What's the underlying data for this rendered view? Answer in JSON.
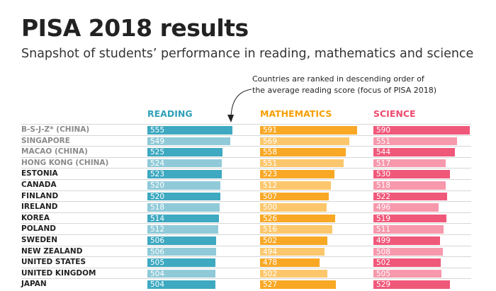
{
  "chart_data": {
    "type": "bar",
    "title": "PISA 2018 results",
    "subtitle": "Snapshot of students’ performance in reading, mathematics and science",
    "annotation": [
      "Countries are ranked in descending order of",
      "the average reading score (focus of PISA 2018)"
    ],
    "categories": [
      "B-S-J-Z* (CHINA)",
      "SINGAPORE",
      "MACAO (CHINA)",
      "HONG KONG (CHINA)",
      "ESTONIA",
      "CANADA",
      "FINLAND",
      "IRELAND",
      "KOREA",
      "POLAND",
      "SWEDEN",
      "NEW ZEALAND",
      "UNITED STATES",
      "UNITED KINGDOM",
      "JAPAN"
    ],
    "highlighted_gray": [
      0,
      1,
      2,
      3
    ],
    "series": [
      {
        "name": "READING",
        "colors": [
          "#3ea9c1",
          "#90cad8"
        ],
        "values": [
          555,
          549,
          525,
          524,
          523,
          520,
          520,
          518,
          514,
          512,
          506,
          506,
          505,
          504,
          504
        ]
      },
      {
        "name": "MATHEMATICS",
        "colors": [
          "#f9a825",
          "#fcc76c"
        ],
        "values": [
          591,
          569,
          558,
          551,
          523,
          512,
          507,
          500,
          526,
          516,
          502,
          494,
          478,
          502,
          527
        ]
      },
      {
        "name": "SCIENCE",
        "colors": [
          "#f0587a",
          "#f798ac"
        ],
        "values": [
          590,
          551,
          544,
          517,
          530,
          518,
          522,
          496,
          519,
          511,
          499,
          508,
          502,
          505,
          529
        ]
      }
    ]
  }
}
